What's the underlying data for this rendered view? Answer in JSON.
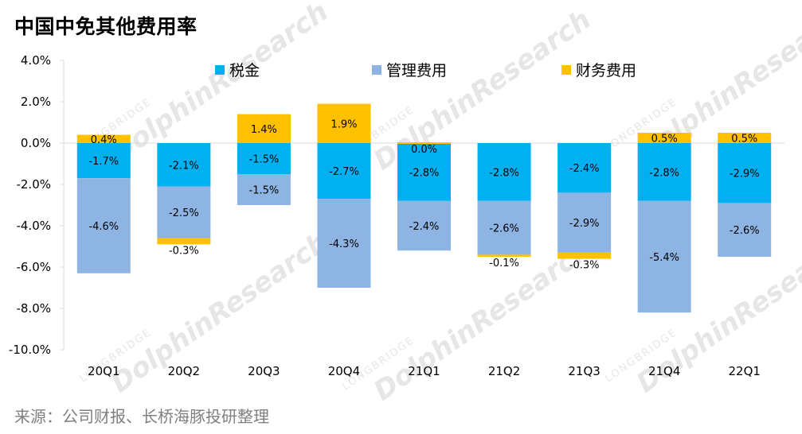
{
  "title": "中国中免其他费用率",
  "source": "来源：公司财报、长桥海豚投研整理",
  "watermark": {
    "main": "DolphinResearch",
    "small": "LONGBRIDGE"
  },
  "chart_data": {
    "type": "bar",
    "stacked": true,
    "categories": [
      "20Q1",
      "20Q2",
      "20Q3",
      "20Q4",
      "21Q1",
      "21Q2",
      "21Q3",
      "21Q4",
      "22Q1"
    ],
    "series": [
      {
        "name": "税金",
        "color": "#00b0f0",
        "values": [
          -1.7,
          -2.1,
          -1.5,
          -2.7,
          -2.8,
          -2.8,
          -2.4,
          -2.8,
          -2.9
        ],
        "labels": [
          "-1.7%",
          "-2.1%",
          "-1.5%",
          "-2.7%",
          "-2.8%",
          "-2.8%",
          "-2.4%",
          "-2.8%",
          "-2.9%"
        ]
      },
      {
        "name": "管理费用",
        "color": "#8eb4e3",
        "values": [
          -4.6,
          -2.5,
          -1.5,
          -4.3,
          -2.4,
          -2.6,
          -2.9,
          -5.4,
          -2.6
        ],
        "labels": [
          "-4.6%",
          "-2.5%",
          "-1.5%",
          "-4.3%",
          "-2.4%",
          "-2.6%",
          "-2.9%",
          "-5.4%",
          "-2.6%"
        ]
      },
      {
        "name": "财务费用",
        "color": "#ffc000",
        "values": [
          0.4,
          -0.3,
          1.4,
          1.9,
          0.0,
          -0.1,
          -0.3,
          0.5,
          0.5
        ],
        "labels": [
          "0.4%",
          "-0.3%",
          "1.4%",
          "1.9%",
          "0.0%",
          "-0.1%",
          "-0.3%",
          "0.5%",
          "0.5%"
        ]
      }
    ],
    "ylim": [
      -10,
      4
    ],
    "yticks": [
      4,
      2,
      0,
      -2,
      -4,
      -6,
      -8,
      -10
    ],
    "ytick_labels": [
      "4.0%",
      "2.0%",
      "0.0%",
      "-2.0%",
      "-4.0%",
      "-6.0%",
      "-8.0%",
      "-10.0%"
    ],
    "legend_position": "top",
    "grid": false
  }
}
